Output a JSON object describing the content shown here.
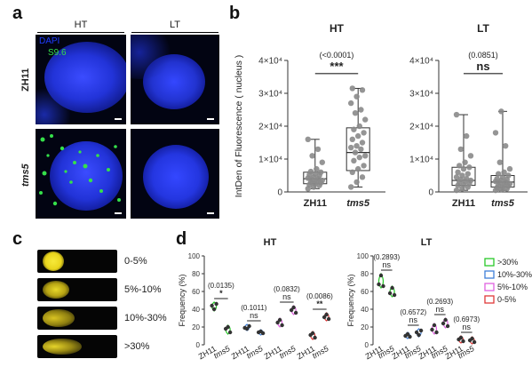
{
  "panel_a": {
    "letter": "a",
    "col_titles": [
      "HT",
      "LT"
    ],
    "row_labels": [
      "ZH11",
      "tms5"
    ],
    "legend": {
      "dapi": "DAPI",
      "s96": "S9.6"
    },
    "colors": {
      "dapi": "#1f3cff",
      "s96": "#35e04a"
    }
  },
  "panel_b": {
    "letter": "b",
    "chart_data": [
      {
        "type": "box",
        "title": "HT",
        "ylabel": "IntDen of Fluorescence ( nucleus )",
        "categories": [
          "ZH11",
          "tms5"
        ],
        "ylim": [
          0,
          40000
        ],
        "ytick_labels": [
          "0",
          "1×10⁴",
          "2×10⁴",
          "3×10⁴",
          "4×10⁴"
        ],
        "yticks": [
          0,
          10000,
          20000,
          30000,
          40000
        ],
        "p_text": "(<0.0001)",
        "sig_text": "***",
        "boxes": [
          {
            "min": 1000,
            "q1": 2500,
            "median": 4000,
            "q3": 6000,
            "max": 16000
          },
          {
            "min": 1500,
            "q1": 6500,
            "median": 12000,
            "q3": 19500,
            "max": 31500
          }
        ],
        "points": [
          [
            1000,
            1500,
            2000,
            2200,
            2500,
            2800,
            3000,
            3200,
            3500,
            3700,
            4000,
            4200,
            4500,
            5000,
            5200,
            5500,
            6000,
            6200,
            7000,
            9000,
            11000,
            13000,
            16000
          ],
          [
            1500,
            3000,
            4500,
            6000,
            7000,
            8000,
            9500,
            10500,
            11000,
            12000,
            13000,
            13500,
            14000,
            15000,
            16000,
            17000,
            18000,
            19000,
            20000,
            22000,
            24000,
            25000,
            27000,
            29000,
            31000,
            31500
          ]
        ]
      },
      {
        "type": "box",
        "title": "LT",
        "ylabel": "",
        "categories": [
          "ZH11",
          "tms5"
        ],
        "ylim": [
          0,
          40000
        ],
        "ytick_labels": [
          "0",
          "1×10⁴",
          "2×10⁴",
          "3×10⁴",
          "4×10⁴"
        ],
        "yticks": [
          0,
          10000,
          20000,
          30000,
          40000
        ],
        "p_text": "(0.0851)",
        "sig_text": "ns",
        "boxes": [
          {
            "min": 500,
            "q1": 2000,
            "median": 3500,
            "q3": 7500,
            "max": 23500
          },
          {
            "min": 500,
            "q1": 1500,
            "median": 3000,
            "q3": 5000,
            "max": 24500
          }
        ],
        "points": [
          [
            500,
            1000,
            1500,
            2000,
            2200,
            2500,
            3000,
            3200,
            3500,
            3800,
            4000,
            4500,
            5000,
            5500,
            6000,
            7000,
            7500,
            8000,
            9000,
            11000,
            13000,
            17000,
            23500
          ],
          [
            500,
            800,
            1000,
            1300,
            1500,
            1800,
            2000,
            2200,
            2500,
            2800,
            3000,
            3200,
            3500,
            3800,
            4000,
            4500,
            5000,
            5500,
            6000,
            7000,
            9000,
            14000,
            18000,
            24500
          ]
        ]
      }
    ],
    "tick_fontsize_scale": 1
  },
  "panel_c": {
    "letter": "c",
    "labels": [
      "0-5%",
      "5%-10%",
      "10%-30%",
      ">30%"
    ],
    "comet_color": "#f2e21a"
  },
  "panel_d": {
    "letter": "d",
    "chart_data": [
      {
        "type": "violin",
        "title": "HT",
        "ylabel": "Frequency (%)",
        "ylim": [
          0,
          100
        ],
        "yticks": [
          0,
          20,
          40,
          60,
          80,
          100
        ],
        "groups": [
          {
            "genotypes": [
              "ZH11",
              "tms5"
            ],
            "series": ">30%",
            "color": "#28c828",
            "p_text": "(0.0135)",
            "sig_text": "*",
            "values": [
              [
                44,
                40,
                46
              ],
              [
                18,
                20,
                14
              ]
            ]
          },
          {
            "genotypes": [
              "ZH11",
              "tms5"
            ],
            "series": "10%-30%",
            "color": "#3f7fd8",
            "p_text": "(0.1011)",
            "sig_text": "ns",
            "values": [
              [
                19,
                18,
                21
              ],
              [
                14,
                15,
                13
              ]
            ]
          },
          {
            "genotypes": [
              "ZH11",
              "tms5"
            ],
            "series": "5%-10%",
            "color": "#e060e0",
            "p_text": "(0.0832)",
            "sig_text": "ns",
            "values": [
              [
                25,
                28,
                22
              ],
              [
                39,
                42,
                36
              ]
            ]
          },
          {
            "genotypes": [
              "ZH11",
              "tms5"
            ],
            "series": "0-5%",
            "color": "#e03a3a",
            "p_text": "(0.0086)",
            "sig_text": "**",
            "values": [
              [
                11,
                13,
                8
              ],
              [
                31,
                34,
                29
              ]
            ]
          }
        ]
      },
      {
        "type": "violin",
        "title": "LT",
        "ylabel": "Frequency (%)",
        "ylim": [
          0,
          100
        ],
        "yticks": [
          0,
          20,
          40,
          60,
          80,
          100
        ],
        "groups": [
          {
            "genotypes": [
              "ZH11",
              "tms5"
            ],
            "series": ">30%",
            "color": "#28c828",
            "p_text": "(0.2893)",
            "sig_text": "ns",
            "values": [
              [
                68,
                78,
                66
              ],
              [
                58,
                64,
                56
              ]
            ]
          },
          {
            "genotypes": [
              "ZH11",
              "tms5"
            ],
            "series": "10%-30%",
            "color": "#3f7fd8",
            "p_text": "(0.6572)",
            "sig_text": "ns",
            "values": [
              [
                10,
                12,
                9
              ],
              [
                14,
                11,
                16
              ]
            ]
          },
          {
            "genotypes": [
              "ZH11",
              "tms5"
            ],
            "series": "5%-10%",
            "color": "#e060e0",
            "p_text": "(0.2693)",
            "sig_text": "ns",
            "values": [
              [
                17,
                22,
                14
              ],
              [
                24,
                28,
                21
              ]
            ]
          },
          {
            "genotypes": [
              "ZH11",
              "tms5"
            ],
            "series": "0-5%",
            "color": "#e03a3a",
            "p_text": "(0.6973)",
            "sig_text": "ns",
            "values": [
              [
                6,
                8,
                4
              ],
              [
                5,
                7,
                3
              ]
            ]
          }
        ]
      }
    ],
    "legend": [
      {
        "label": ">30%",
        "color": "#28c828"
      },
      {
        "label": "10%-30%",
        "color": "#3f7fd8"
      },
      {
        "label": "5%-10%",
        "color": "#e060e0"
      },
      {
        "label": "0-5%",
        "color": "#e03a3a"
      }
    ]
  }
}
